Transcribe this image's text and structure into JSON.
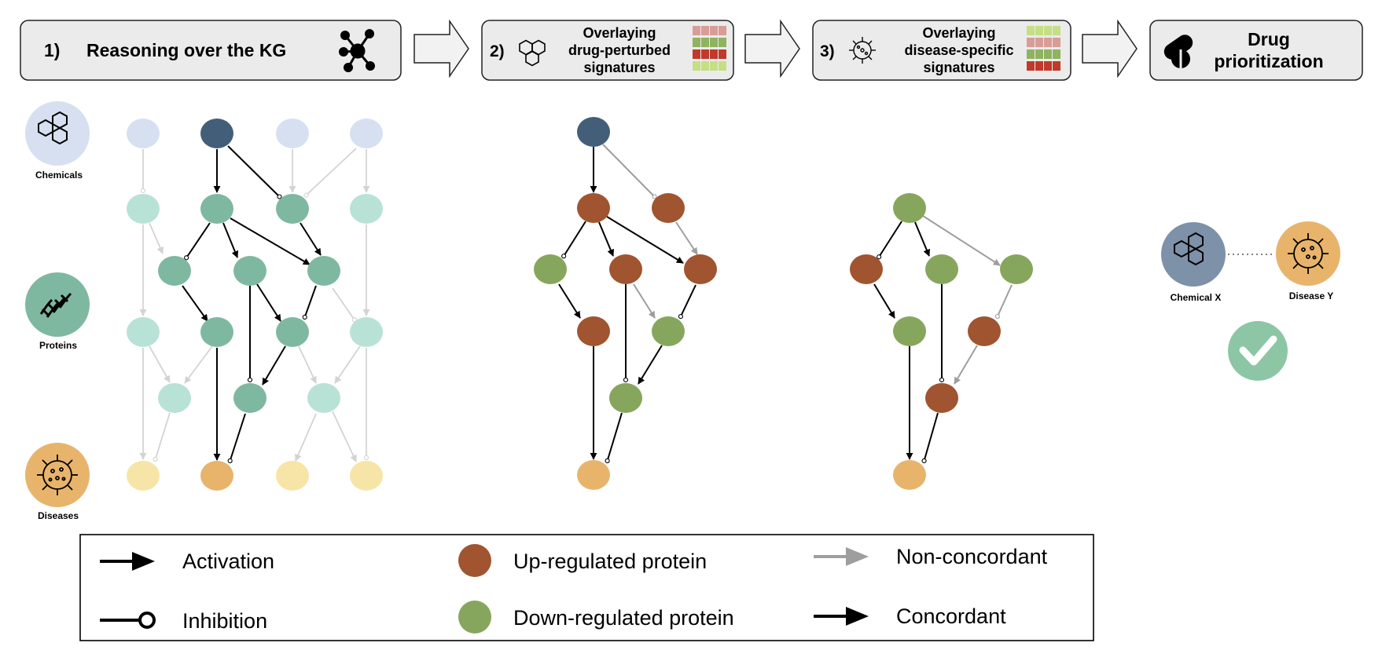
{
  "steps": [
    {
      "number": "1)",
      "title": "Reasoning over the KG"
    },
    {
      "number": "2)",
      "title_lines": [
        "Overlaying",
        "drug-perturbed",
        "signatures"
      ]
    },
    {
      "number": "3)",
      "title_lines": [
        "Overlaying",
        "disease-specific",
        "signatures"
      ]
    },
    {
      "title_lines": [
        "Drug",
        "prioritization"
      ]
    }
  ],
  "node_types": {
    "chemicals": "Chemicals",
    "proteins": "Proteins",
    "diseases": "Diseases"
  },
  "prioritization": {
    "chemical": "Chemical X",
    "disease": "Disease Y"
  },
  "legend": {
    "activation": "Activation",
    "inhibition": "Inhibition",
    "up_regulated": "Up-regulated protein",
    "down_regulated": "Down-regulated protein",
    "non_concordant": "Non-concordant",
    "concordant": "Concordant"
  },
  "colors": {
    "chemical_active": "#425e79",
    "chemical_faded": "#d6e0f1",
    "protein_active": "#7fb8a0",
    "protein_faded": "#b9e2d6",
    "disease_active": "#e8b46c",
    "disease_faded": "#f6e5a6",
    "up_regulated": "#a0542f",
    "down_regulated": "#87a65d",
    "concordant_edge": "#000000",
    "non_concordant_edge": "#9e9e9e",
    "faded_edge": "#d3d3d3",
    "check_circle": "#8cc6a5"
  },
  "icons": {
    "kg": "network-icon",
    "drug": "hexagon-molecule-icon",
    "disease": "virus-icon",
    "prioritization": "pills-icon",
    "approved": "checkmark-icon"
  }
}
